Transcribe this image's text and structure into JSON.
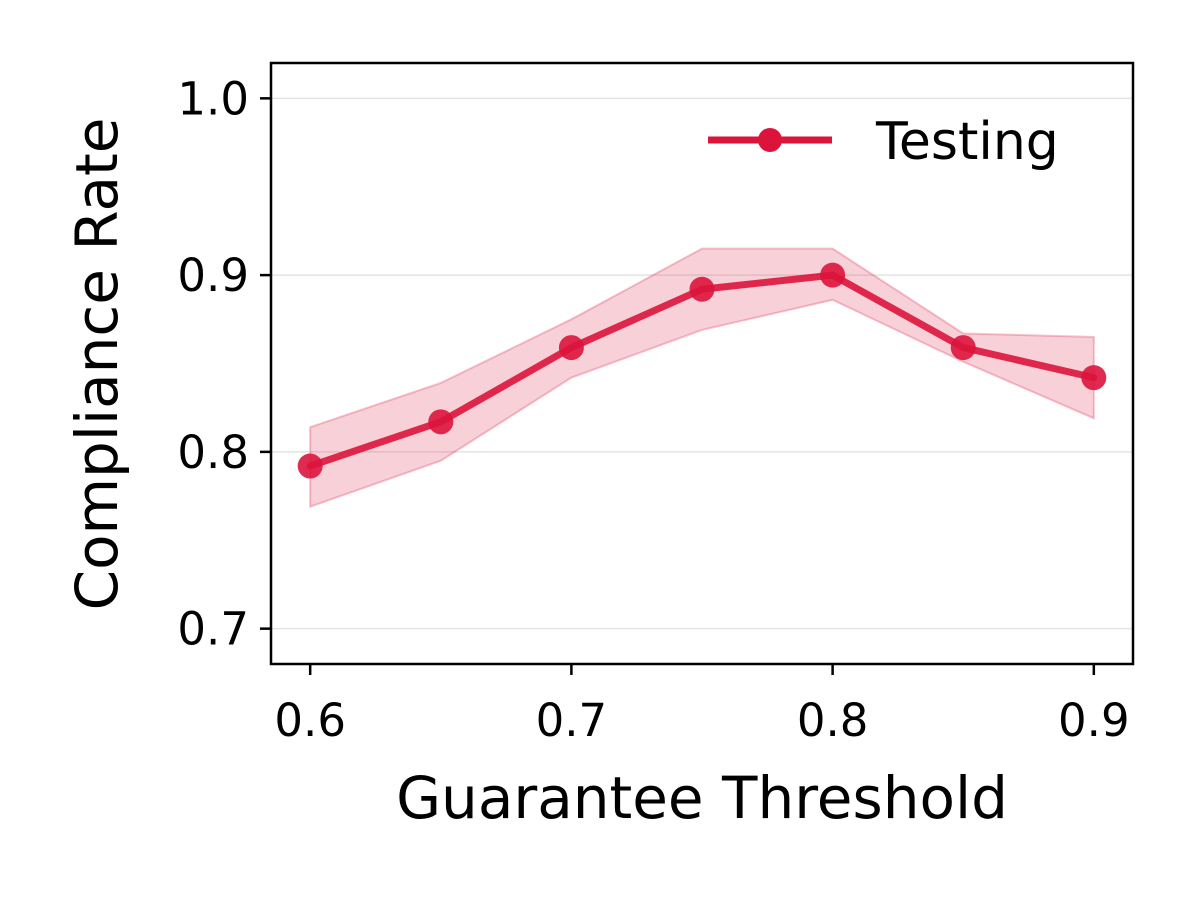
{
  "chart_data": {
    "type": "line",
    "title": "",
    "xlabel": "Guarantee Threshold",
    "ylabel": "Compliance Rate",
    "xlim": [
      0.585,
      0.915
    ],
    "ylim": [
      0.68,
      1.02
    ],
    "x_ticks": [
      "0.6",
      "0.7",
      "0.8",
      "0.9"
    ],
    "y_ticks": [
      "0.7",
      "0.8",
      "0.9",
      "1.0"
    ],
    "grid": "horizontal",
    "legend_position": "top-right",
    "series": [
      {
        "name": "Testing",
        "color": "#dc143c",
        "x": [
          0.6,
          0.65,
          0.7,
          0.75,
          0.8,
          0.85,
          0.9
        ],
        "y": [
          0.792,
          0.817,
          0.859,
          0.892,
          0.9,
          0.859,
          0.842
        ],
        "lower": [
          0.769,
          0.795,
          0.842,
          0.869,
          0.886,
          0.851,
          0.819
        ],
        "upper": [
          0.814,
          0.839,
          0.875,
          0.915,
          0.915,
          0.867,
          0.865
        ]
      }
    ]
  }
}
